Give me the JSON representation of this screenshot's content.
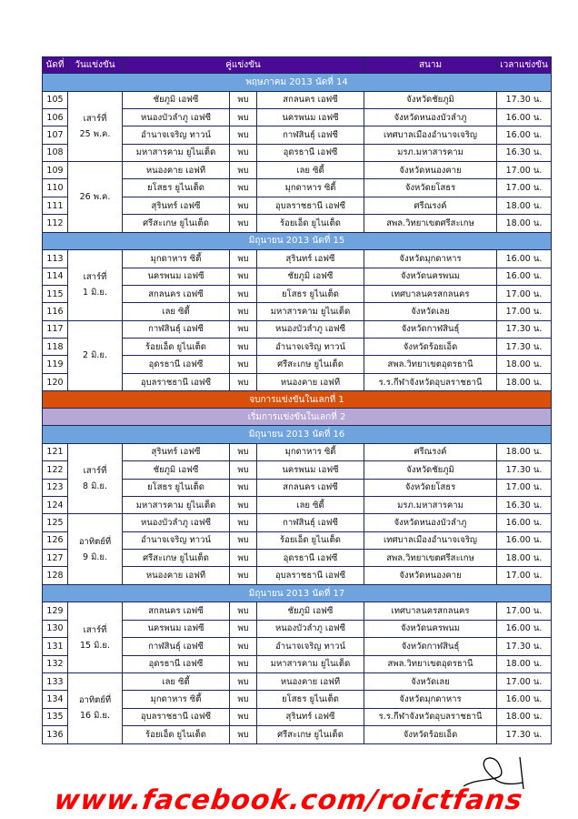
{
  "header": {
    "no": "นัดที่",
    "date": "วันแข่งขัน",
    "match": "คู่แข่งขัน",
    "venue": "สนาม",
    "time": "เวลาแข่งขัน"
  },
  "vs_label": "พบ",
  "colors": {
    "header": "#4b0a96",
    "round": "#6fa3de",
    "end_leg": "#d9500b",
    "start_leg": "#b7a7d6",
    "footer": "#ff0000"
  },
  "rounds": [
    {
      "title": "พฤษภาคม 2013 นัดที่ 14",
      "days": [
        {
          "date": "เสาร์ที่\n25 พ.ค.",
          "matches": [
            {
              "no": "105",
              "home": "ชัยภูมิ เอฟซี",
              "away": "สกลนคร เอฟซี",
              "venue": "จังหวัดชัยภูมิ",
              "time": "17.30 น."
            },
            {
              "no": "106",
              "home": "หนองบัวลำภู เอฟซี",
              "away": "นครพนม เอฟซี",
              "venue": "จังหวัดหนองบัวลำภู",
              "time": "16.00 น."
            },
            {
              "no": "107",
              "home": "อำนาจเจริญ ทาวน์",
              "away": "กาฬสินธุ์ เอฟซี",
              "venue": "เทศบาลเมืองอำนาจเจริญ",
              "time": "16.00 น."
            },
            {
              "no": "108",
              "home": "มหาสารคาม ยูไนเต็ด",
              "away": "อุดรธานี เอฟซี",
              "venue": "มรภ.มหาสารคาม",
              "time": "16.30 น."
            }
          ]
        },
        {
          "date": "26 พ.ค.",
          "matches": [
            {
              "no": "109",
              "home": "หนองคาย เอฟที",
              "away": "เลย ซิตี้",
              "venue": "จังหวัดหนองคาย",
              "time": "17.00 น."
            },
            {
              "no": "110",
              "home": "ยโสธร ยูไนเต็ด",
              "away": "มุกดาหาร ซิตี้",
              "venue": "จังหวัดยโสธร",
              "time": "17.00 น."
            },
            {
              "no": "111",
              "home": "สุรินทร์ เอฟซี",
              "away": "อุบลราชธานี เอฟซี",
              "venue": "ศรีณรงค์",
              "time": "18.00 น."
            },
            {
              "no": "112",
              "home": "ศรีสะเกษ ยูไนเต็ด",
              "away": "ร้อยเอ็ด ยูไนเต็ด",
              "venue": "สพล.วิทยาเขตศรีสะเกษ",
              "time": "18.00 น."
            }
          ]
        }
      ]
    },
    {
      "title": "มิถุนายน 2013 นัดที่ 15",
      "days": [
        {
          "date": "เสาร์ที่\n1 มิ.ย.",
          "matches": [
            {
              "no": "113",
              "home": "มุกดาหาร ซิตี้",
              "away": "สุรินทร์ เอฟซี",
              "venue": "จังหวัดมุกดาหาร",
              "time": "16.00 น."
            },
            {
              "no": "114",
              "home": "นครพนม เอฟซี",
              "away": "ชัยภูมิ เอฟซี",
              "venue": "จังหวัดนครพนม",
              "time": "16.00 น."
            },
            {
              "no": "115",
              "home": "สกลนคร เอฟซี",
              "away": "ยโสธร ยูไนเต็ด",
              "venue": "เทศบาลนครสกลนคร",
              "time": "17.00 น."
            },
            {
              "no": "116",
              "home": "เลย ซิตี้",
              "away": "มหาสารคาม ยูไนเต็ด",
              "venue": "จังหวัดเลย",
              "time": "17.00 น."
            }
          ]
        },
        {
          "date": "2 มิ.ย.",
          "matches": [
            {
              "no": "117",
              "home": "กาฬสินธุ์ เอฟซี",
              "away": "หนองบัวลำภู เอฟซี",
              "venue": "จังหวัดกาฬสินธุ์",
              "time": "17.30 น."
            },
            {
              "no": "118",
              "home": "ร้อยเอ็ด ยูไนเต็ด",
              "away": "อำนาจเจริญ ทาวน์",
              "venue": "จังหวัดร้อยเอ็ด",
              "time": "17.30 น."
            },
            {
              "no": "119",
              "home": "อุดรธานี เอฟซี",
              "away": "ศรีสะเกษ ยูไนเต็ด",
              "venue": "สพล.วิทยาเขตอุดรธานี",
              "time": "18.00 น."
            },
            {
              "no": "120",
              "home": "อุบลราชธานี เอฟซี",
              "away": "หนองคาย เอฟที",
              "venue": "ร.ร.กีฬาจังหวัดอุบลราชธานี",
              "time": "18.00 น."
            }
          ]
        }
      ]
    },
    {
      "title": "มิถุนายน 2013 นัดที่ 16",
      "days": [
        {
          "date": "เสาร์ที่\n8 มิ.ย.",
          "matches": [
            {
              "no": "121",
              "home": "สุรินทร์ เอฟซี",
              "away": "มุกดาหาร ซิตี้",
              "venue": "ศรีณรงค์",
              "time": "18.00 น."
            },
            {
              "no": "122",
              "home": "ชัยภูมิ เอฟซี",
              "away": "นครพนม เอฟซี",
              "venue": "จังหวัดชัยภูมิ",
              "time": "17.30 น."
            },
            {
              "no": "123",
              "home": "ยโสธร ยูไนเต็ด",
              "away": "สกลนคร เอฟซี",
              "venue": "จังหวัดยโสธร",
              "time": "17.00 น."
            },
            {
              "no": "124",
              "home": "มหาสารคาม ยูไนเต็ด",
              "away": "เลย ซิตี้",
              "venue": "มรภ.มหาสารคาม",
              "time": "16.30 น."
            }
          ]
        },
        {
          "date": "อาทิตย์ที่\n9 มิ.ย.",
          "matches": [
            {
              "no": "125",
              "home": "หนองบัวลำภู เอฟซี",
              "away": "กาฬสินธุ์ เอฟซี",
              "venue": "จังหวัดหนองบัวลำภู",
              "time": "16.00 น."
            },
            {
              "no": "126",
              "home": "อำนาจเจริญ ทาวน์",
              "away": "ร้อยเอ็ด ยูไนเต็ด",
              "venue": "เทศบาลเมืองอำนาจเจริญ",
              "time": "16.00 น."
            },
            {
              "no": "127",
              "home": "ศรีสะเกษ ยูไนเต็ด",
              "away": "อุดรธานี เอฟซี",
              "venue": "สพล.วิทยาเขตศรีสะเกษ",
              "time": "18.00 น."
            },
            {
              "no": "128",
              "home": "หนองคาย เอฟที",
              "away": "อุบลราชธานี เอฟซี",
              "venue": "จังหวัดหนองคาย",
              "time": "17.00 น."
            }
          ]
        }
      ]
    },
    {
      "title": "มิถุนายน 2013 นัดที่ 17",
      "days": [
        {
          "date": "เสาร์ที่\n15 มิ.ย.",
          "matches": [
            {
              "no": "129",
              "home": "สกลนคร เอฟซี",
              "away": "ชัยภูมิ เอฟซี",
              "venue": "เทศบาลนครสกลนคร",
              "time": "17.00 น."
            },
            {
              "no": "130",
              "home": "นครพนม เอฟซี",
              "away": "หนองบัวลำภู เอฟซี",
              "venue": "จังหวัดนครพนม",
              "time": "16.00 น."
            },
            {
              "no": "131",
              "home": "กาฬสินธุ์ เอฟซี",
              "away": "อำนาจเจริญ ทาวน์",
              "venue": "จังหวัดกาฬสินธุ์",
              "time": "17.30 น."
            },
            {
              "no": "132",
              "home": "อุดรธานี เอฟซี",
              "away": "มหาสารคาม ยูไนเต็ด",
              "venue": "สพล.วิทยาเขตอุดรธานี",
              "time": "18.00 น."
            }
          ]
        },
        {
          "date": "อาทิตย์ที่\n16 มิ.ย.",
          "matches": [
            {
              "no": "133",
              "home": "เลย ซิตี้",
              "away": "หนองคาย เอฟที",
              "venue": "จังหวัดเลย",
              "time": "17.00 น."
            },
            {
              "no": "134",
              "home": "มุกดาหาร ซิตี้",
              "away": "ยโสธร ยูไนเต็ด",
              "venue": "จังหวัดมุกดาหาร",
              "time": "16.00 น."
            },
            {
              "no": "135",
              "home": "อุบลราชธานี เอฟซี",
              "away": "สุรินทร์ เอฟซี",
              "venue": "ร.ร.กีฬาจังหวัดอุบลราชธานี",
              "time": "18.00 น."
            },
            {
              "no": "136",
              "home": "ร้อยเอ็ด ยูไนเต็ด",
              "away": "ศรีสะเกษ ยูไนเต็ด",
              "venue": "จังหวัดร้อยเอ็ด",
              "time": "17.30 น."
            }
          ]
        }
      ]
    }
  ],
  "end_leg_1": "จบการแข่งขันในเลกที่ 1",
  "start_leg_2": "เริ่มการแข่งขันในเลกที่ 2",
  "footer_link": "www.facebook.com/roictfans"
}
